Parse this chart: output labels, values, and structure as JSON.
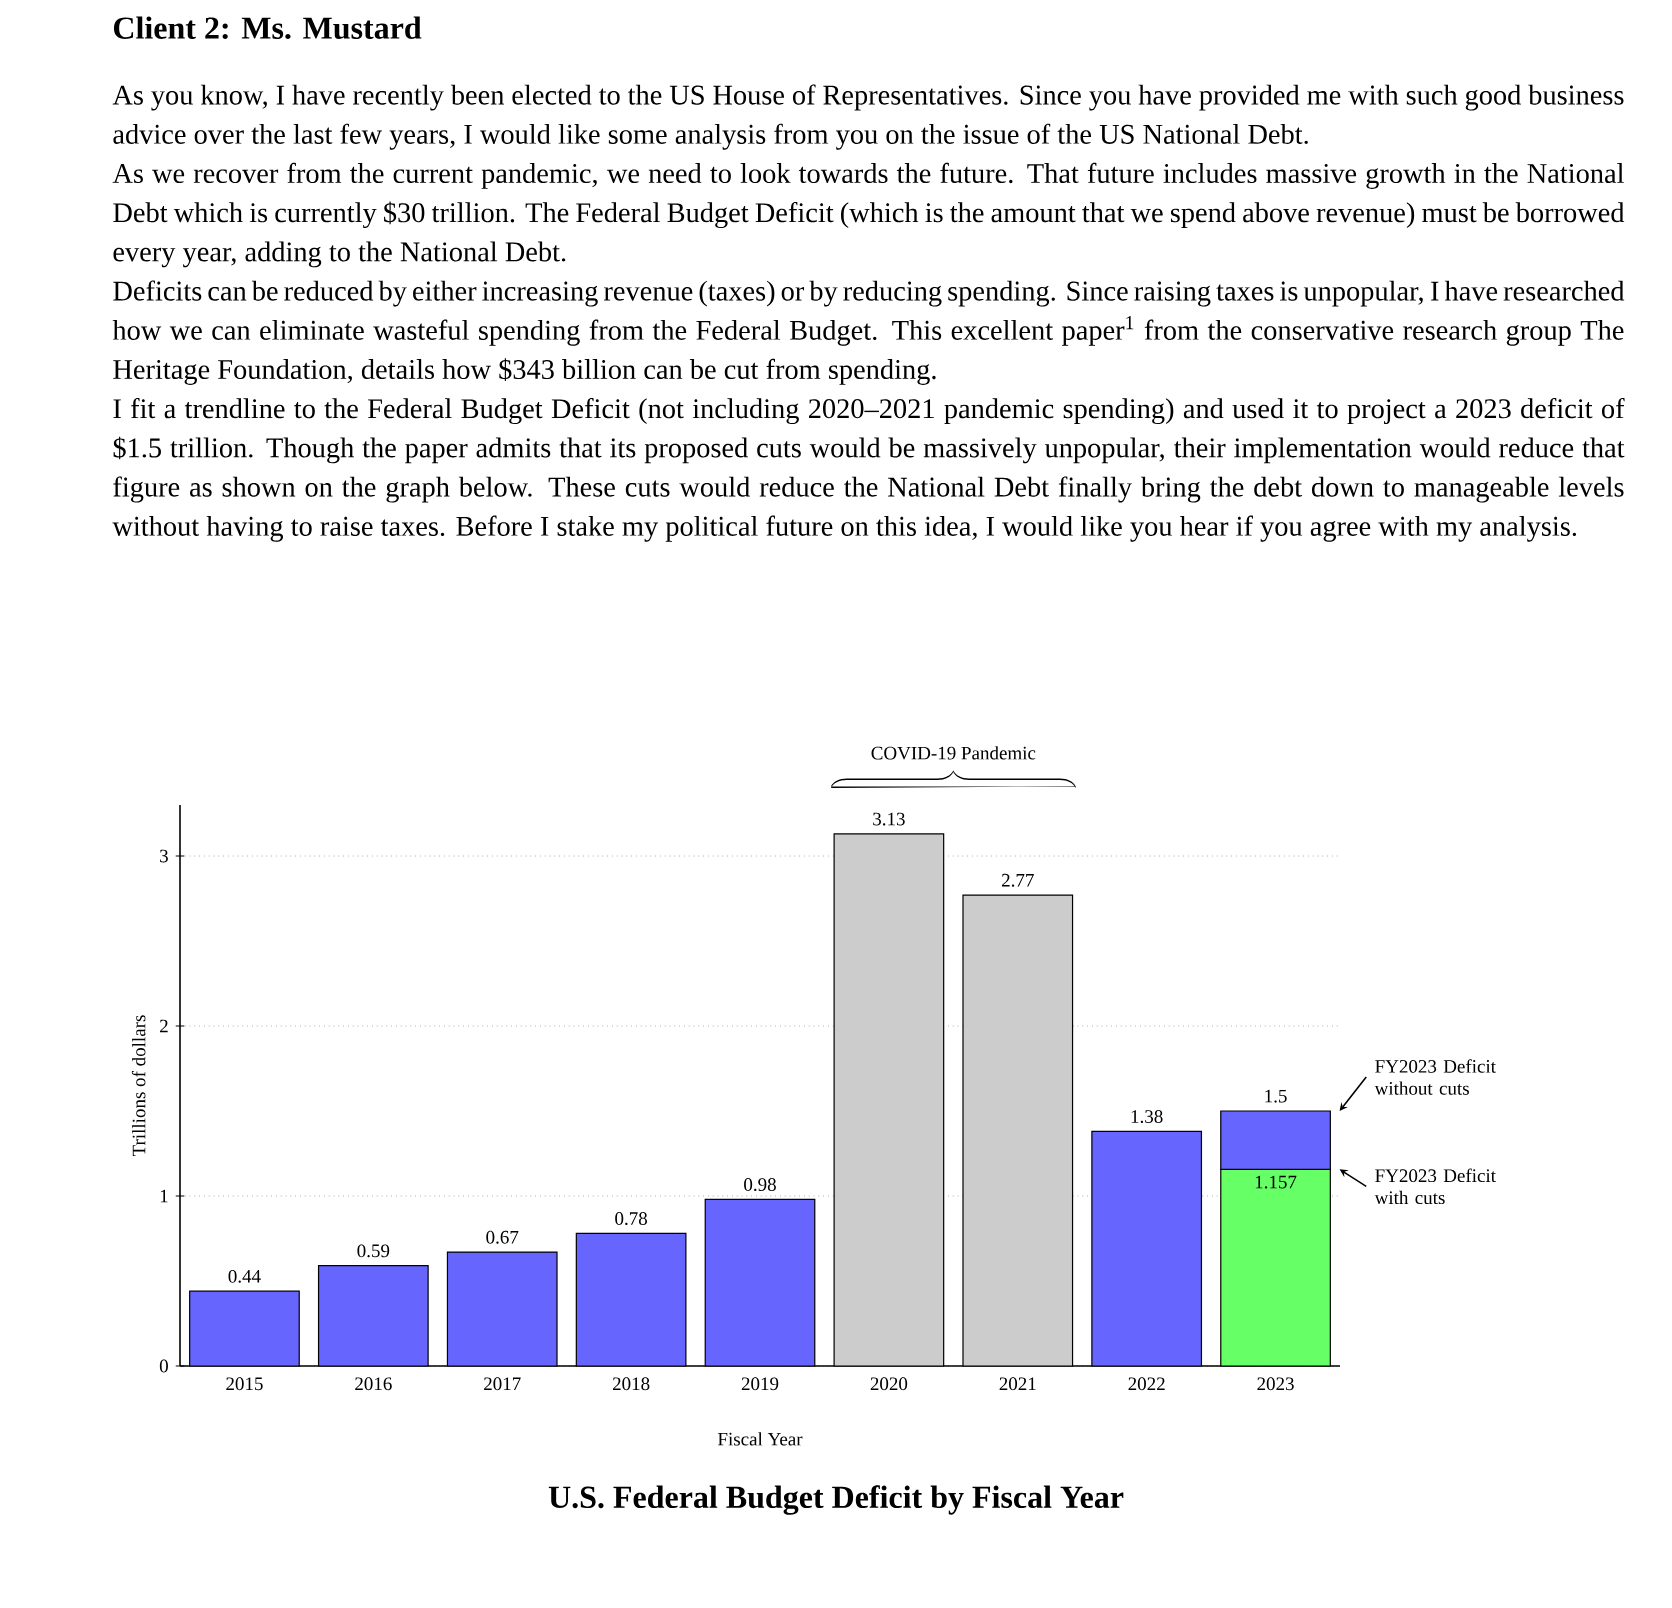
{
  "chart_data": {
    "type": "bar",
    "title": "U.S. Federal Budget Deficit by Fiscal Year",
    "subtitle": "Client 2: Ms. Mustard",
    "annotations": [
      "As you know, I have recently been elected to the US House of Representatives. Since you have provided me with such good business advice over the last few years, I would like some analysis from you on the issue of the US National Debt.",
      "As we recover from the current pandemic, we need to look towards the future. That future includes massive growth in the National Debt which is currently $30 trillion. The Federal Budget Deficit (which is the amount that we spend above revenue) must be borrowed every year, adding to the National Debt.",
      "Deficits can be reduced by either increasing revenue (taxes) or by reducing spending. Since raising taxes is unpopular, I have researched how we can eliminate wasteful spending from the Federal Budget. This excellent paper$^{1}$ from the conservative research group The Heritage Foundation, details how $343 billion can be cut from spending.",
      "I fit a trendline to the Federal Budget Deficit (not including 2020–2021 pandemic spending) and used it to project a 2023 deficit of $1.5 trillion. Though the paper admits that its proposed cuts would be massively unpopular, their implementation would reduce that figure as shown on the graph below. These cuts would reduce the National Debt finally bring the debt down to manageable levels without having to raise taxes. Before I stake my political future on this idea, I would like you hear if you agree with my analysis.",
      "COVID-19 Pandemic",
      "FY2023 Deficit without cuts",
      "FY2023 Deficit with cuts"
    ],
    "xlabel": "Fiscal Year",
    "ylabel": "Trillions of dollars",
    "categories": [
      "2015",
      "2016",
      "2017",
      "2018",
      "2019",
      "2020",
      "2021",
      "2022",
      "2023"
    ],
    "stacked": true,
    "series": [
      {
        "values": [
          0.44,
          0.59,
          0.67,
          0.78,
          0.98,
          3.13,
          2.77,
          1.38,
          1.157
        ],
        "colors": [
          "#6666ff",
          "#6666ff",
          "#6666ff",
          "#6666ff",
          "#6666ff",
          "#cccccc",
          "#cccccc",
          "#6666ff",
          "#66ff66"
        ],
        "value_labels": [
          null,
          null,
          null,
          null,
          null,
          null,
          null,
          null,
          "1.157"
        ]
      },
      {
        "values": [
          null,
          null,
          null,
          null,
          null,
          null,
          null,
          null,
          0.343
        ],
        "color": "#6666ff"
      }
    ],
    "totals": [
      "0.44",
      "0.59",
      "0.67",
      "0.78",
      "0.98",
      "3.13",
      "2.77",
      "1.38",
      "1.5"
    ],
    "ylim": [
      0,
      3.3
    ],
    "yticks": [
      0,
      1,
      2,
      3
    ],
    "grid": "y"
  }
}
